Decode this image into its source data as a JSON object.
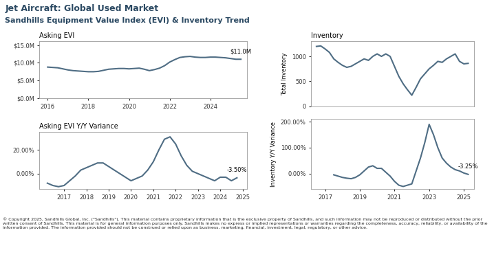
{
  "title": "Jet Aircraft: Global Used Market",
  "subtitle": "Sandhills Equipment Value Index (EVI) & Inventory Trend",
  "footer": "© Copyright 2025, Sandhills Global, Inc. (\"Sandhills\"). This material contains proprietary information that is the exclusive property of Sandhills, and such information may not be reproduced or distributed without the prior written consent of Sandhills. This material is for general information purposes only. Sandhills makes no express or implied representations or warranties regarding the completeness, accuracy, reliability, or availability of the information provided. The information provided should not be construed or relied upon as business, marketing, financial, investment, legal, regulatory, or other advice.",
  "chart_data": [
    {
      "type": "line",
      "title": "Asking EVI",
      "color": "#4f6d84",
      "annotation": "$11.0M",
      "x": [
        2016.0,
        2016.25,
        2016.5,
        2016.75,
        2017.0,
        2017.25,
        2017.5,
        2017.75,
        2018.0,
        2018.25,
        2018.5,
        2018.75,
        2019.0,
        2019.25,
        2019.5,
        2019.75,
        2020.0,
        2020.25,
        2020.5,
        2020.75,
        2021.0,
        2021.25,
        2021.5,
        2021.75,
        2022.0,
        2022.25,
        2022.5,
        2022.75,
        2023.0,
        2023.25,
        2023.5,
        2023.75,
        2024.0,
        2024.25,
        2024.5,
        2024.75,
        2025.0,
        2025.25,
        2025.5
      ],
      "values": [
        8.8,
        8.7,
        8.6,
        8.3,
        8.0,
        7.8,
        7.7,
        7.6,
        7.5,
        7.5,
        7.6,
        7.9,
        8.2,
        8.3,
        8.4,
        8.4,
        8.3,
        8.4,
        8.5,
        8.2,
        7.8,
        8.1,
        8.5,
        9.2,
        10.2,
        10.9,
        11.5,
        11.7,
        11.8,
        11.6,
        11.5,
        11.5,
        11.6,
        11.6,
        11.5,
        11.4,
        11.2,
        11.0,
        11.0
      ],
      "xlim": [
        2015.6,
        2025.8
      ],
      "xticks": [
        2016,
        2018,
        2020,
        2022,
        2024
      ],
      "ylim": [
        0,
        16
      ],
      "yticks": [
        {
          "value": 0,
          "label": "$0.0M"
        },
        {
          "value": 5,
          "label": "$5.0M"
        },
        {
          "value": 10,
          "label": "$10.0M"
        },
        {
          "value": 15,
          "label": "$15.0M"
        }
      ]
    },
    {
      "type": "line",
      "title": "Asking EVI Y/Y Variance",
      "color": "#4f6d84",
      "annotation": "-3.50%",
      "x": [
        2016.25,
        2016.5,
        2016.75,
        2017.0,
        2017.25,
        2017.5,
        2017.75,
        2018.0,
        2018.25,
        2018.5,
        2018.75,
        2019.0,
        2019.25,
        2019.5,
        2019.75,
        2020.0,
        2020.25,
        2020.5,
        2020.75,
        2021.0,
        2021.25,
        2021.5,
        2021.75,
        2022.0,
        2022.25,
        2022.5,
        2022.75,
        2023.0,
        2023.25,
        2023.5,
        2023.75,
        2024.0,
        2024.25,
        2024.5,
        2024.75
      ],
      "values": [
        -8,
        -10,
        -11,
        -10,
        -6,
        -2,
        3,
        5,
        7,
        9,
        9,
        6,
        3,
        0,
        -3,
        -6,
        -4,
        -2,
        3,
        10,
        20,
        29,
        31,
        25,
        15,
        7,
        2,
        0,
        -2,
        -4,
        -6,
        -3,
        -3,
        -6,
        -3.5
      ],
      "xlim": [
        2015.9,
        2025.2
      ],
      "xticks": [
        2017,
        2018,
        2019,
        2020,
        2021,
        2022,
        2023,
        2024,
        2025
      ],
      "ylim": [
        -13,
        35
      ],
      "yticks": [
        {
          "value": 0,
          "label": "0.00%"
        },
        {
          "value": 20,
          "label": "20.00%"
        }
      ]
    },
    {
      "type": "line",
      "title": "Inventory",
      "y_label": "Total Inventory",
      "color": "#4f6d84",
      "tick_labels": "y",
      "x": [
        2016.5,
        2016.75,
        2017.0,
        2017.25,
        2017.5,
        2017.75,
        2018.0,
        2018.25,
        2018.5,
        2018.75,
        2019.0,
        2019.25,
        2019.5,
        2019.75,
        2020.0,
        2020.25,
        2020.5,
        2020.75,
        2021.0,
        2021.25,
        2021.5,
        2021.75,
        2022.0,
        2022.25,
        2022.5,
        2022.75,
        2023.0,
        2023.25,
        2023.5,
        2023.75,
        2024.0,
        2024.25,
        2024.5,
        2024.75,
        2025.0,
        2025.25
      ],
      "values": [
        1200,
        1210,
        1150,
        1080,
        950,
        880,
        820,
        780,
        800,
        850,
        900,
        950,
        920,
        1000,
        1050,
        1000,
        1050,
        1000,
        800,
        600,
        450,
        330,
        220,
        380,
        550,
        650,
        750,
        820,
        900,
        880,
        950,
        1000,
        1050,
        900,
        850,
        860
      ],
      "xlim": [
        2016.2,
        2025.6
      ],
      "ylim": [
        0,
        1300
      ],
      "yticks": [
        0,
        500,
        1000
      ]
    },
    {
      "type": "line",
      "y_label": "Inventory Y/Y Variance",
      "color": "#4f6d84",
      "annotation": "-3.25%",
      "x": [
        2017.5,
        2017.75,
        2018.0,
        2018.25,
        2018.5,
        2018.75,
        2019.0,
        2019.25,
        2019.5,
        2019.75,
        2020.0,
        2020.25,
        2020.5,
        2020.75,
        2021.0,
        2021.25,
        2021.5,
        2021.75,
        2022.0,
        2022.25,
        2022.5,
        2022.75,
        2023.0,
        2023.25,
        2023.5,
        2023.75,
        2024.0,
        2024.25,
        2024.5,
        2024.75,
        2025.0,
        2025.25
      ],
      "values": [
        -5,
        -10,
        -15,
        -18,
        -20,
        -15,
        -5,
        10,
        25,
        30,
        20,
        20,
        5,
        -10,
        -30,
        -45,
        -50,
        -45,
        -40,
        10,
        60,
        120,
        190,
        150,
        100,
        60,
        40,
        25,
        15,
        10,
        2,
        -3.25
      ],
      "xlim": [
        2016.2,
        2025.6
      ],
      "xticks": [
        2017,
        2019,
        2021,
        2023,
        2025
      ],
      "ylim": [
        -60,
        210
      ],
      "yticks": [
        {
          "value": 0,
          "label": "0.00%"
        },
        {
          "value": 100,
          "label": "100.00%"
        },
        {
          "value": 200,
          "label": "200.00%"
        }
      ]
    }
  ]
}
